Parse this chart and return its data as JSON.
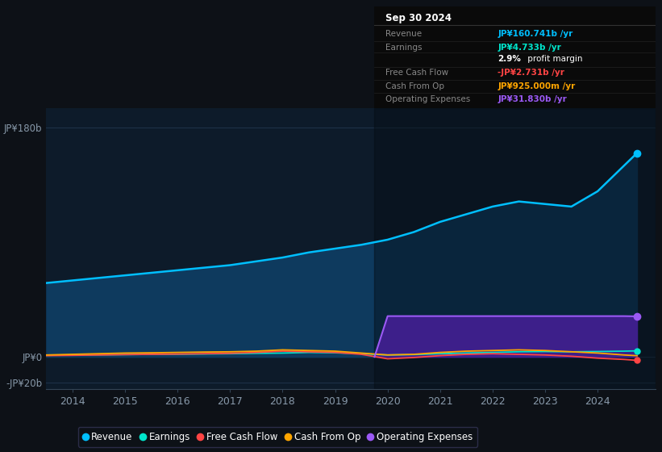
{
  "background_color": "#0d1117",
  "plot_bg_color": "#0d1b2a",
  "years": [
    2013.5,
    2014.0,
    2014.5,
    2015.0,
    2015.5,
    2016.0,
    2016.5,
    2017.0,
    2017.5,
    2018.0,
    2018.5,
    2019.0,
    2019.5,
    2020.0,
    2020.5,
    2021.0,
    2021.5,
    2022.0,
    2022.5,
    2023.0,
    2023.5,
    2024.0,
    2024.5,
    2024.75
  ],
  "revenue": [
    58,
    60,
    62,
    64,
    66,
    68,
    70,
    72,
    75,
    78,
    82,
    85,
    88,
    92,
    98,
    106,
    112,
    118,
    122,
    120,
    118,
    130,
    150,
    160
  ],
  "earnings": [
    1.2,
    1.5,
    1.6,
    1.8,
    2.0,
    2.1,
    2.3,
    2.5,
    2.8,
    3.0,
    3.5,
    3.2,
    2.5,
    1.5,
    1.8,
    2.5,
    3.0,
    3.5,
    4.0,
    4.2,
    4.0,
    4.2,
    4.5,
    4.733
  ],
  "free_cash_flow": [
    1.0,
    1.2,
    1.5,
    1.8,
    2.0,
    2.2,
    2.5,
    2.8,
    3.5,
    4.5,
    4.0,
    3.5,
    2.0,
    -1.5,
    -0.5,
    1.0,
    2.0,
    2.5,
    2.0,
    1.5,
    0.5,
    -1.0,
    -2.0,
    -2.731
  ],
  "cash_from_op": [
    1.5,
    2.0,
    2.5,
    3.0,
    3.2,
    3.5,
    3.8,
    4.0,
    4.5,
    5.5,
    5.0,
    4.5,
    3.0,
    1.5,
    2.0,
    3.5,
    4.5,
    5.0,
    5.5,
    5.0,
    4.0,
    3.0,
    1.5,
    0.925
  ],
  "op_years": [
    2019.75,
    2020.0,
    2020.5,
    2021.0,
    2021.5,
    2022.0,
    2022.5,
    2023.0,
    2023.5,
    2024.0,
    2024.5,
    2024.75
  ],
  "op_vals": [
    0,
    32,
    32,
    32,
    32,
    32,
    32,
    32,
    32,
    32,
    32,
    31.83
  ],
  "revenue_color": "#00bfff",
  "earnings_color": "#00e5cc",
  "fcf_color": "#ff4444",
  "cop_color": "#ffa500",
  "opex_color": "#9b59f5",
  "revenue_fill": "#0e3a5e",
  "opex_fill": "#3d1f8a",
  "grid_color": "#1e3048",
  "tick_color": "#8899aa",
  "yticks": [
    180,
    0,
    -20
  ],
  "ytick_labels": [
    "JP¥180b",
    "JP¥0",
    "-JP¥20b"
  ],
  "xticks": [
    2014,
    2015,
    2016,
    2017,
    2018,
    2019,
    2020,
    2021,
    2022,
    2023,
    2024
  ],
  "xlim": [
    2013.5,
    2025.1
  ],
  "ylim": [
    -25,
    195
  ],
  "dark_region_start": 2019.75,
  "info_box": {
    "date": "Sep 30 2024",
    "rows": [
      {
        "label": "Revenue",
        "value": "JP¥160.741b /yr",
        "color": "#00bfff"
      },
      {
        "label": "Earnings",
        "value": "JP¥4.733b /yr",
        "color": "#00e5cc"
      },
      {
        "label": "",
        "value": "2.9% profit margin",
        "color": "#ffffff",
        "bold_prefix": "2.9%"
      },
      {
        "label": "Free Cash Flow",
        "value": "-JP¥2.731b /yr",
        "color": "#ff4444"
      },
      {
        "label": "Cash From Op",
        "value": "JP¥925.000m /yr",
        "color": "#ffa500"
      },
      {
        "label": "Operating Expenses",
        "value": "JP¥31.830b /yr",
        "color": "#9b59f5"
      }
    ]
  },
  "legend": [
    {
      "label": "Revenue",
      "color": "#00bfff"
    },
    {
      "label": "Earnings",
      "color": "#00e5cc"
    },
    {
      "label": "Free Cash Flow",
      "color": "#ff4444"
    },
    {
      "label": "Cash From Op",
      "color": "#ffa500"
    },
    {
      "label": "Operating Expenses",
      "color": "#9b59f5"
    }
  ]
}
